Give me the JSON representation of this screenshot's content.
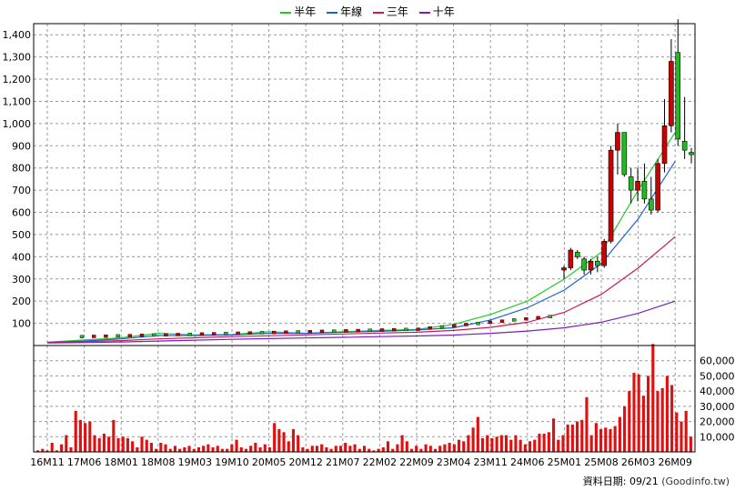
{
  "legend": [
    {
      "name": "半年",
      "color": "#22cc22"
    },
    {
      "name": "年線",
      "color": "#1f5fd6"
    },
    {
      "name": "三年",
      "color": "#cc1a55"
    },
    {
      "name": "十年",
      "color": "#7a1fb8"
    }
  ],
  "footer": {
    "date_label": "資料日期: 09/21",
    "source": "(Goodinfo.tw)"
  },
  "colors": {
    "up": "#cc0000",
    "down": "#22bb22",
    "volume": "#e01010",
    "grid": "#999999"
  },
  "chart_data": [
    {
      "type": "candlestick",
      "title": "",
      "ylim": [
        0,
        1450
      ],
      "yticks": [
        100,
        200,
        300,
        400,
        500,
        600,
        700,
        800,
        900,
        1000,
        1100,
        1200,
        1300,
        1400
      ],
      "ytick_labels": [
        "100",
        "200",
        "300",
        "400",
        "500",
        "600",
        "700",
        "800",
        "900",
        "1,000",
        "1,100",
        "1,200",
        "1,300",
        "1,400"
      ],
      "grid": true,
      "x_tick_labels": [
        "16M11",
        "17M06",
        "18M01",
        "18M08",
        "19M03",
        "19M10",
        "20M05",
        "20M12",
        "21M07",
        "22M02",
        "22M09",
        "23M04",
        "23M11",
        "24M06",
        "25M01",
        "25M08",
        "26M03",
        "26M09"
      ],
      "candles": [
        {
          "x": "25M01",
          "o": 340,
          "h": 360,
          "l": 300,
          "c": 350
        },
        {
          "x": "25M02",
          "o": 350,
          "h": 440,
          "l": 340,
          "c": 430
        },
        {
          "x": "25M03",
          "o": 420,
          "h": 430,
          "l": 390,
          "c": 400
        },
        {
          "x": "25M04",
          "o": 390,
          "h": 400,
          "l": 320,
          "c": 340
        },
        {
          "x": "25M05",
          "o": 340,
          "h": 390,
          "l": 320,
          "c": 380
        },
        {
          "x": "25M06",
          "o": 380,
          "h": 400,
          "l": 330,
          "c": 360
        },
        {
          "x": "25M07",
          "o": 360,
          "h": 480,
          "l": 350,
          "c": 470
        },
        {
          "x": "25M08",
          "o": 470,
          "h": 900,
          "l": 460,
          "c": 880
        },
        {
          "x": "25M09",
          "o": 880,
          "h": 1000,
          "l": 770,
          "c": 960
        },
        {
          "x": "25M10",
          "o": 960,
          "h": 960,
          "l": 760,
          "c": 770
        },
        {
          "x": "25M11",
          "o": 760,
          "h": 800,
          "l": 640,
          "c": 700
        },
        {
          "x": "25M12",
          "o": 700,
          "h": 800,
          "l": 650,
          "c": 740
        },
        {
          "x": "26M01",
          "o": 740,
          "h": 820,
          "l": 640,
          "c": 660
        },
        {
          "x": "26M02",
          "o": 660,
          "h": 760,
          "l": 590,
          "c": 610
        },
        {
          "x": "26M03",
          "o": 610,
          "h": 840,
          "l": 600,
          "c": 820
        },
        {
          "x": "26M04",
          "o": 820,
          "h": 1110,
          "l": 780,
          "c": 990
        },
        {
          "x": "26M05",
          "o": 990,
          "h": 1380,
          "l": 960,
          "c": 1280
        },
        {
          "x": "26M06",
          "o": 1320,
          "h": 1470,
          "l": 900,
          "c": 930
        },
        {
          "x": "26M07",
          "o": 920,
          "h": 1120,
          "l": 840,
          "c": 880
        },
        {
          "x": "26M09",
          "o": 870,
          "h": 890,
          "l": 820,
          "c": 860
        }
      ],
      "series": [
        {
          "name": "半年",
          "x": [
            "16M11",
            "17M06",
            "18M01",
            "18M08",
            "19M03",
            "19M10",
            "20M05",
            "20M12",
            "21M07",
            "22M02",
            "22M09",
            "23M04",
            "23M11",
            "24M06",
            "25M01",
            "25M08",
            "26M03",
            "26M09"
          ],
          "values": [
            15,
            25,
            35,
            55,
            48,
            50,
            62,
            55,
            62,
            68,
            72,
            95,
            140,
            200,
            300,
            420,
            700,
            960
          ]
        },
        {
          "name": "年線",
          "x": [
            "16M11",
            "17M06",
            "18M01",
            "18M08",
            "19M03",
            "19M10",
            "20M05",
            "20M12",
            "21M07",
            "22M02",
            "22M09",
            "23M04",
            "23M11",
            "24M06",
            "25M01",
            "25M08",
            "26M03",
            "26M09"
          ],
          "values": [
            14,
            20,
            30,
            45,
            45,
            48,
            55,
            55,
            60,
            64,
            70,
            80,
            115,
            170,
            250,
            370,
            570,
            830
          ]
        },
        {
          "name": "三年",
          "x": [
            "16M11",
            "17M06",
            "18M01",
            "18M08",
            "19M03",
            "19M10",
            "20M05",
            "20M12",
            "21M07",
            "22M02",
            "22M09",
            "23M04",
            "23M11",
            "24M06",
            "25M01",
            "25M08",
            "26M03",
            "26M09"
          ],
          "values": [
            13,
            17,
            22,
            30,
            35,
            40,
            44,
            48,
            52,
            56,
            60,
            68,
            82,
            105,
            150,
            230,
            350,
            490
          ]
        },
        {
          "name": "十年",
          "x": [
            "16M11",
            "17M06",
            "18M01",
            "18M08",
            "19M03",
            "19M10",
            "20M05",
            "20M12",
            "21M07",
            "22M02",
            "22M09",
            "23M04",
            "23M11",
            "24M06",
            "25M01",
            "25M08",
            "26M03",
            "26M09"
          ],
          "values": [
            12,
            13,
            16,
            20,
            24,
            28,
            31,
            34,
            37,
            40,
            43,
            47,
            55,
            65,
            80,
            105,
            145,
            200
          ]
        }
      ]
    },
    {
      "type": "bar",
      "title": "",
      "ylim": [
        0,
        70000
      ],
      "yticks": [
        10000,
        20000,
        30000,
        40000,
        50000,
        60000
      ],
      "ytick_labels": [
        "10,000",
        "20,000",
        "30,000",
        "40,000",
        "50,000",
        "60,000"
      ],
      "grid": true,
      "values": [
        1000,
        2000,
        1000,
        6000,
        1000,
        5000,
        11000,
        3000,
        27000,
        21000,
        19000,
        20000,
        11000,
        9000,
        12000,
        10000,
        21000,
        9000,
        10000,
        9000,
        7000,
        3000,
        10000,
        8000,
        6000,
        2000,
        6000,
        5000,
        2000,
        4000,
        2000,
        3000,
        4000,
        2000,
        3000,
        4000,
        5000,
        3000,
        4000,
        2000,
        2000,
        5000,
        8000,
        3000,
        2000,
        4000,
        6000,
        3000,
        5000,
        3000,
        19000,
        15000,
        13000,
        7000,
        15000,
        11000,
        3000,
        2000,
        4000,
        4000,
        5000,
        3000,
        2000,
        4000,
        4000,
        6000,
        4000,
        5000,
        2000,
        4000,
        2000,
        1000,
        2000,
        3000,
        7000,
        2000,
        5000,
        11000,
        7000,
        2000,
        4000,
        2000,
        5000,
        4000,
        2000,
        4000,
        5000,
        6000,
        5000,
        8000,
        7000,
        11000,
        16000,
        23000,
        9000,
        11000,
        9000,
        10000,
        11000,
        11000,
        8000,
        11000,
        8000,
        5000,
        7000,
        8000,
        12000,
        12000,
        13000,
        22000,
        8000,
        11000,
        18000,
        18000,
        20000,
        21000,
        36000,
        11000,
        19000,
        15000,
        16000,
        15000,
        17000,
        23000,
        30000,
        40000,
        52000,
        51000,
        37000,
        50000,
        71000,
        40000,
        42000,
        50000,
        44000,
        26000,
        20000,
        27000,
        10000
      ]
    }
  ]
}
